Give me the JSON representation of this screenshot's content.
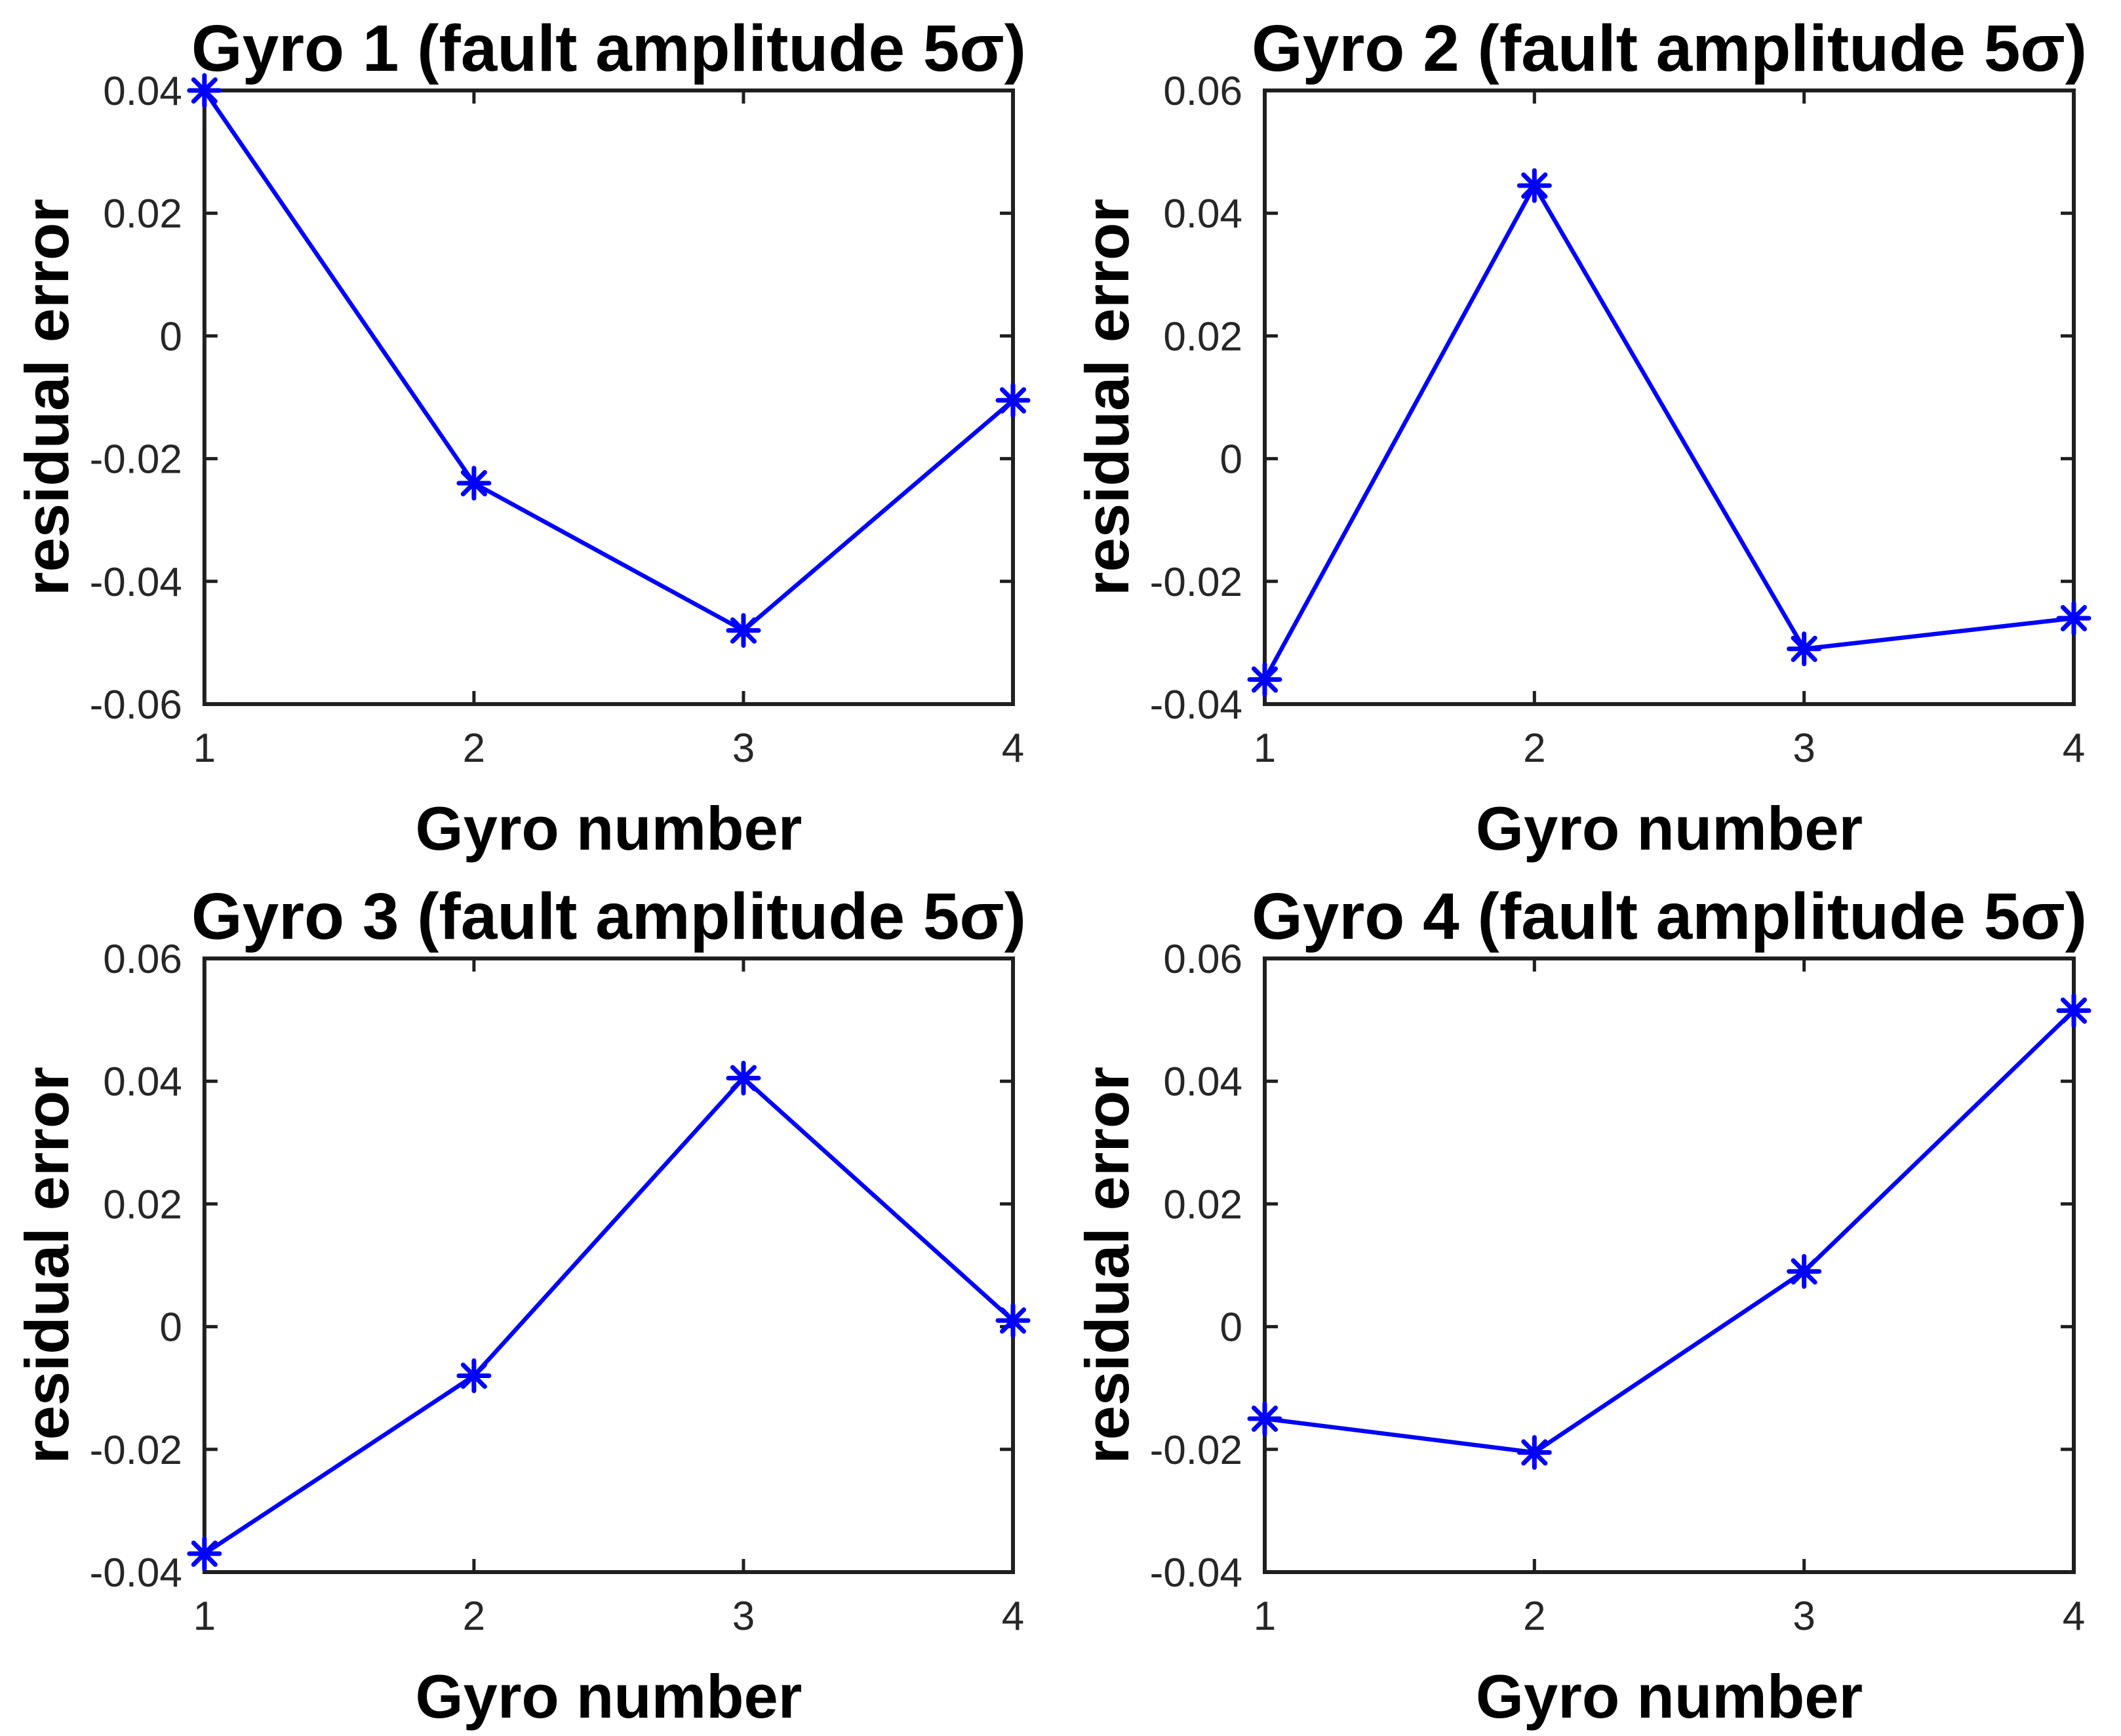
{
  "figure": {
    "background_color": "#ffffff"
  },
  "chart_data": {
    "type": "line",
    "layout": "2x2-grid",
    "shared": {
      "x": [
        1,
        2,
        3,
        4
      ],
      "x_ticks": [
        1,
        2,
        3,
        4
      ],
      "x_tick_labels": [
        "1",
        "2",
        "3",
        "4"
      ],
      "xlabel": "Gyro number",
      "ylabel": "residual error",
      "line_color": "#0000ff",
      "marker": "asterisk",
      "marker_color": "#0000ff",
      "axis_color": "#1f1f1f",
      "tick_label_color": "#262626",
      "label_color": "#000000",
      "grid": false,
      "legend": null
    },
    "charts": [
      {
        "title": "Gyro 1 (fault amplitude 5σ)",
        "ylim": [
          -0.06,
          0.04
        ],
        "y_ticks": [
          0.04,
          0.02,
          0,
          -0.02,
          -0.04,
          -0.06
        ],
        "y_tick_labels": [
          "0.04",
          "0.02",
          "0",
          "-0.02",
          "-0.04",
          "-0.06"
        ],
        "values": [
          0.04,
          -0.024,
          -0.048,
          -0.0105
        ]
      },
      {
        "title": "Gyro 2 (fault amplitude 5σ)",
        "ylim": [
          -0.04,
          0.06
        ],
        "y_ticks": [
          0.06,
          0.04,
          0.02,
          0,
          -0.02,
          -0.04
        ],
        "y_tick_labels": [
          "0.06",
          "0.04",
          "0.02",
          "0",
          "-0.02",
          "-0.04"
        ],
        "values": [
          -0.036,
          0.0445,
          -0.031,
          -0.026
        ]
      },
      {
        "title": "Gyro 3 (fault amplitude 5σ)",
        "ylim": [
          -0.04,
          0.06
        ],
        "y_ticks": [
          0.06,
          0.04,
          0.02,
          0,
          -0.02,
          -0.04
        ],
        "y_tick_labels": [
          "0.06",
          "0.04",
          "0.02",
          "0",
          "-0.02",
          "-0.04"
        ],
        "values": [
          -0.037,
          -0.008,
          0.0405,
          0.001
        ]
      },
      {
        "title": "Gyro 4 (fault amplitude 5σ)",
        "ylim": [
          -0.04,
          0.06
        ],
        "y_ticks": [
          0.06,
          0.04,
          0.02,
          0,
          -0.02,
          -0.04
        ],
        "y_tick_labels": [
          "0.06",
          "0.04",
          "0.02",
          "0",
          "-0.02",
          "-0.04"
        ],
        "values": [
          -0.015,
          -0.0205,
          0.009,
          0.0515
        ]
      }
    ]
  }
}
